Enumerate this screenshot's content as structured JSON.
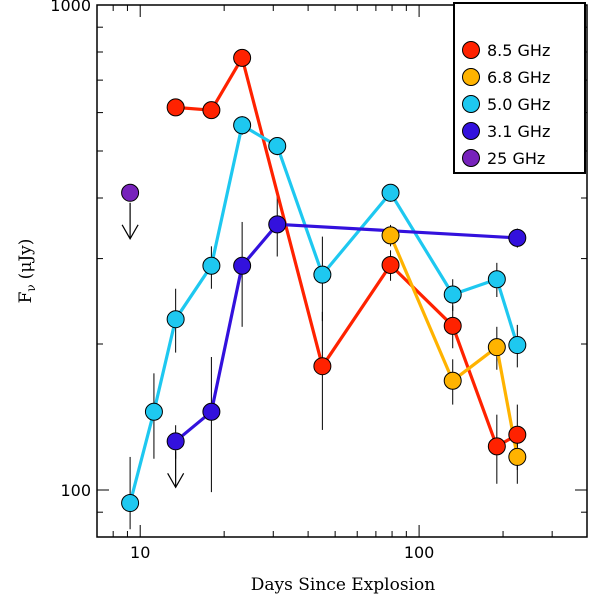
{
  "chart_data": {
    "type": "scatter",
    "title": "",
    "xlabel": "Days Since Explosion",
    "ylabel": "F_ν (μJy)",
    "ylabel_parts": {
      "sym": "F",
      "sub": "ν",
      "unit": "(μJy)"
    },
    "x_scale": "log",
    "y_scale": "log",
    "xlim": [
      7,
      400
    ],
    "ylim": [
      80,
      1000
    ],
    "x_ticks": [
      10,
      100
    ],
    "x_tick_labels": [
      "10",
      "100"
    ],
    "y_ticks": [
      100,
      1000
    ],
    "y_tick_labels": [
      "100",
      "1000"
    ],
    "legend_position": "top-right",
    "series": [
      {
        "name": "8.5 GHz",
        "color": "#ff2200",
        "line": true,
        "points": [
          {
            "x": 13.4,
            "y": 615,
            "err": [
              594,
              636
            ]
          },
          {
            "x": 18.0,
            "y": 607,
            "err": [
              586,
              628
            ]
          },
          {
            "x": 23.2,
            "y": 778,
            "err": [
              748,
              808
            ]
          },
          {
            "x": 45.0,
            "y": 180,
            "err": [
              133,
              233
            ]
          },
          {
            "x": 79.0,
            "y": 291,
            "err": [
              270,
              312
            ]
          },
          {
            "x": 132.0,
            "y": 218,
            "err": [
              196,
              240
            ]
          },
          {
            "x": 190.0,
            "y": 123,
            "err": [
              103,
              143
            ]
          },
          {
            "x": 225.0,
            "y": 130,
            "err": [
              110,
              150
            ]
          }
        ]
      },
      {
        "name": "6.8 GHz",
        "color": "#ffb300",
        "line": true,
        "points": [
          {
            "x": 79.0,
            "y": 335,
            "err": [
              318,
              352
            ]
          },
          {
            "x": 132.0,
            "y": 168,
            "err": [
              150,
              186
            ]
          },
          {
            "x": 190.0,
            "y": 197,
            "err": [
              177,
              217
            ]
          },
          {
            "x": 225.0,
            "y": 117,
            "err": [
              103,
              131
            ]
          }
        ]
      },
      {
        "name": "5.0 GHz",
        "color": "#1ec8f0",
        "line": true,
        "points": [
          {
            "x": 9.2,
            "y": 94,
            "err": [
              83,
              117
            ]
          },
          {
            "x": 11.2,
            "y": 145,
            "err": [
              116,
              174
            ]
          },
          {
            "x": 13.4,
            "y": 225,
            "err": [
              192,
              260
            ]
          },
          {
            "x": 18.0,
            "y": 290,
            "err": [
              260,
              318
            ]
          },
          {
            "x": 23.2,
            "y": 565,
            "err": [
              540,
              590
            ]
          },
          {
            "x": 31.0,
            "y": 512,
            "err": [
              490,
              534
            ]
          },
          {
            "x": 45.0,
            "y": 278,
            "err": [
              223,
              333
            ]
          },
          {
            "x": 79.0,
            "y": 410,
            "err": [
              393,
              427
            ]
          },
          {
            "x": 132.0,
            "y": 253,
            "err": [
              234,
              272
            ]
          },
          {
            "x": 190.0,
            "y": 272,
            "err": [
              250,
              294
            ]
          },
          {
            "x": 225.0,
            "y": 199,
            "err": [
              179,
              219
            ]
          }
        ]
      },
      {
        "name": "3.1 GHz",
        "color": "#3311dd",
        "line": true,
        "points": [
          {
            "x": 13.4,
            "y": 126,
            "err": [
              116,
              136
            ]
          },
          {
            "x": 18.0,
            "y": 145,
            "err": [
              99,
              188
            ]
          },
          {
            "x": 23.2,
            "y": 290,
            "err": [
              217,
              357
            ]
          },
          {
            "x": 31.0,
            "y": 353,
            "err": [
              303,
              410
            ]
          },
          {
            "x": 225.0,
            "y": 331,
            "err": [
              316,
              346
            ]
          }
        ]
      },
      {
        "name": "25 GHz",
        "color": "#7722bb",
        "line": false,
        "points": [
          {
            "x": 9.2,
            "y": 410
          }
        ]
      }
    ],
    "upper_limits": [
      {
        "series": "25 GHz",
        "x": 9.2,
        "y": 410
      },
      {
        "series": "3.1 GHz",
        "x": 13.4,
        "y": 126
      }
    ]
  }
}
